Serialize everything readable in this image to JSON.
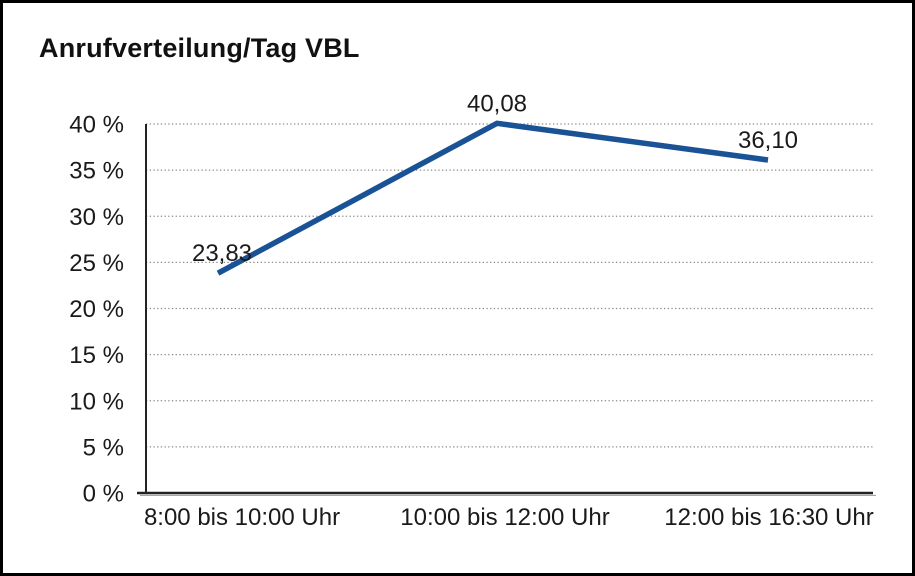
{
  "title": "Anrufverteilung/Tag VBL",
  "chart_data": {
    "type": "line",
    "title": "Anrufverteilung/Tag VBL",
    "categories": [
      "8:00 bis 10:00 Uhr",
      "10:00 bis 12:00 Uhr",
      "12:00 bis 16:30 Uhr"
    ],
    "values": [
      23.83,
      40.08,
      36.1
    ],
    "data_labels": [
      "23,83",
      "40,08",
      "36,10"
    ],
    "xlabel": "",
    "ylabel": "",
    "ylim": [
      0,
      40
    ],
    "y_tick_step": 5,
    "y_tick_labels": [
      "0 %",
      "5 %",
      "10 %",
      "15 %",
      "20 %",
      "25 %",
      "30 %",
      "35 %",
      "40 %"
    ],
    "grid": "horizontal-dotted",
    "legend": "none",
    "colors": {
      "line": "#1A5296",
      "grid": "#8A8A8A",
      "axis": "#222222",
      "axis_shadow": "#999999",
      "text": "#1A1A1A",
      "background": "#FFFFFF",
      "border": "#000000"
    }
  }
}
